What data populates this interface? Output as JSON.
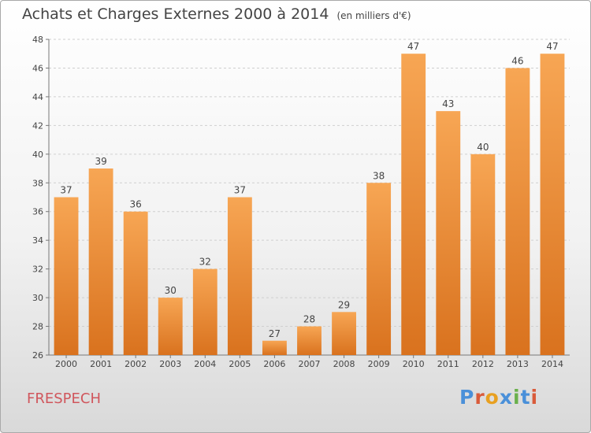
{
  "header": {
    "title": "Achats et Charges Externes 2000 à 2014",
    "unit": "(en milliers d'€)"
  },
  "footer": {
    "commune": "FRESPECH",
    "brand": "Proxiti"
  },
  "colors": {
    "bar_light": "#f7a654",
    "bar_dark": "#d9721e",
    "commune": "#d0565c",
    "brand_letters": [
      "#4a90d9",
      "#d95b3a",
      "#e8a020",
      "#4a90d9",
      "#6ab04c",
      "#4a90d9",
      "#d95b3a"
    ]
  },
  "chart_data": {
    "type": "bar",
    "title": "Achats et Charges Externes 2000 à 2014",
    "subtitle": "(en milliers d'€)",
    "categories": [
      "2000",
      "2001",
      "2002",
      "2003",
      "2004",
      "2005",
      "2006",
      "2007",
      "2008",
      "2009",
      "2010",
      "2011",
      "2012",
      "2013",
      "2014"
    ],
    "values": [
      37,
      39,
      36,
      30,
      32,
      37,
      27,
      28,
      29,
      38,
      47,
      43,
      40,
      46,
      47
    ],
    "ylim": [
      26,
      48
    ],
    "yticks": [
      26,
      28,
      30,
      32,
      34,
      36,
      38,
      40,
      42,
      44,
      46,
      48
    ],
    "grid": true,
    "legend": "none"
  }
}
